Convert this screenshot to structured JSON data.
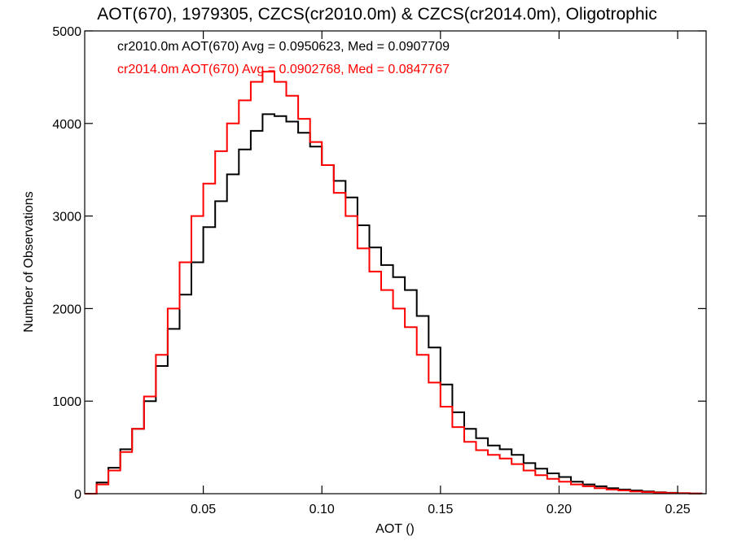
{
  "chart_data": {
    "type": "line",
    "title": "AOT(670), 1979305, CZCS(cr2010.0m) & CZCS(cr2014.0m), Oligotrophic",
    "xlabel": "AOT ()",
    "ylabel": "Number of Observations",
    "xlim": [
      0.0,
      0.262
    ],
    "ylim": [
      0,
      5000
    ],
    "x_ticks": [
      0.05,
      0.1,
      0.15,
      0.2,
      0.25
    ],
    "x_tick_labels": [
      "0.05",
      "0.10",
      "0.15",
      "0.20",
      "0.25"
    ],
    "y_ticks": [
      0,
      1000,
      2000,
      3000,
      4000,
      5000
    ],
    "y_tick_labels": [
      "0",
      "1000",
      "2000",
      "3000",
      "4000",
      "5000"
    ],
    "grid": false,
    "legend_position": "top-left",
    "series": [
      {
        "label": "cr2010.0m AOT(670) Avg = 0.0950623, Med = 0.0907709",
        "color": "#000000",
        "line_style": "step",
        "x": [
          0.0,
          0.005,
          0.01,
          0.015,
          0.02,
          0.025,
          0.03,
          0.035,
          0.04,
          0.045,
          0.05,
          0.055,
          0.06,
          0.065,
          0.07,
          0.075,
          0.08,
          0.085,
          0.09,
          0.095,
          0.1,
          0.105,
          0.11,
          0.115,
          0.12,
          0.125,
          0.13,
          0.135,
          0.14,
          0.145,
          0.15,
          0.155,
          0.16,
          0.165,
          0.17,
          0.175,
          0.18,
          0.185,
          0.19,
          0.195,
          0.2,
          0.205,
          0.21,
          0.215,
          0.22,
          0.225,
          0.23,
          0.235,
          0.24,
          0.245,
          0.25,
          0.255,
          0.26
        ],
        "y": [
          0,
          120,
          280,
          480,
          700,
          1000,
          1380,
          1780,
          2150,
          2500,
          2880,
          3160,
          3450,
          3720,
          3920,
          4100,
          4080,
          4020,
          3900,
          3750,
          3550,
          3380,
          3200,
          2900,
          2660,
          2470,
          2340,
          2200,
          1920,
          1580,
          1180,
          880,
          700,
          600,
          520,
          480,
          420,
          330,
          270,
          220,
          180,
          130,
          100,
          80,
          60,
          45,
          35,
          25,
          15,
          10,
          5,
          3,
          0
        ]
      },
      {
        "label": "cr2014.0m AOT(670) Avg = 0.0902768, Med = 0.0847767",
        "color": "#ff0000",
        "line_style": "step",
        "x": [
          0.0,
          0.005,
          0.01,
          0.015,
          0.02,
          0.025,
          0.03,
          0.035,
          0.04,
          0.045,
          0.05,
          0.055,
          0.06,
          0.065,
          0.07,
          0.075,
          0.08,
          0.085,
          0.09,
          0.095,
          0.1,
          0.105,
          0.11,
          0.115,
          0.12,
          0.125,
          0.13,
          0.135,
          0.14,
          0.145,
          0.15,
          0.155,
          0.16,
          0.165,
          0.17,
          0.175,
          0.18,
          0.185,
          0.19,
          0.195,
          0.2,
          0.205,
          0.21,
          0.215,
          0.22,
          0.225,
          0.23,
          0.235,
          0.24,
          0.245,
          0.25,
          0.255,
          0.26
        ],
        "y": [
          0,
          100,
          250,
          450,
          700,
          1050,
          1500,
          2000,
          2500,
          3000,
          3350,
          3700,
          4000,
          4250,
          4450,
          4560,
          4450,
          4300,
          4050,
          3800,
          3550,
          3250,
          3000,
          2650,
          2400,
          2200,
          2000,
          1800,
          1500,
          1200,
          940,
          720,
          560,
          470,
          420,
          380,
          320,
          250,
          200,
          160,
          130,
          100,
          80,
          60,
          45,
          35,
          25,
          18,
          12,
          8,
          5,
          3,
          0
        ]
      }
    ]
  }
}
